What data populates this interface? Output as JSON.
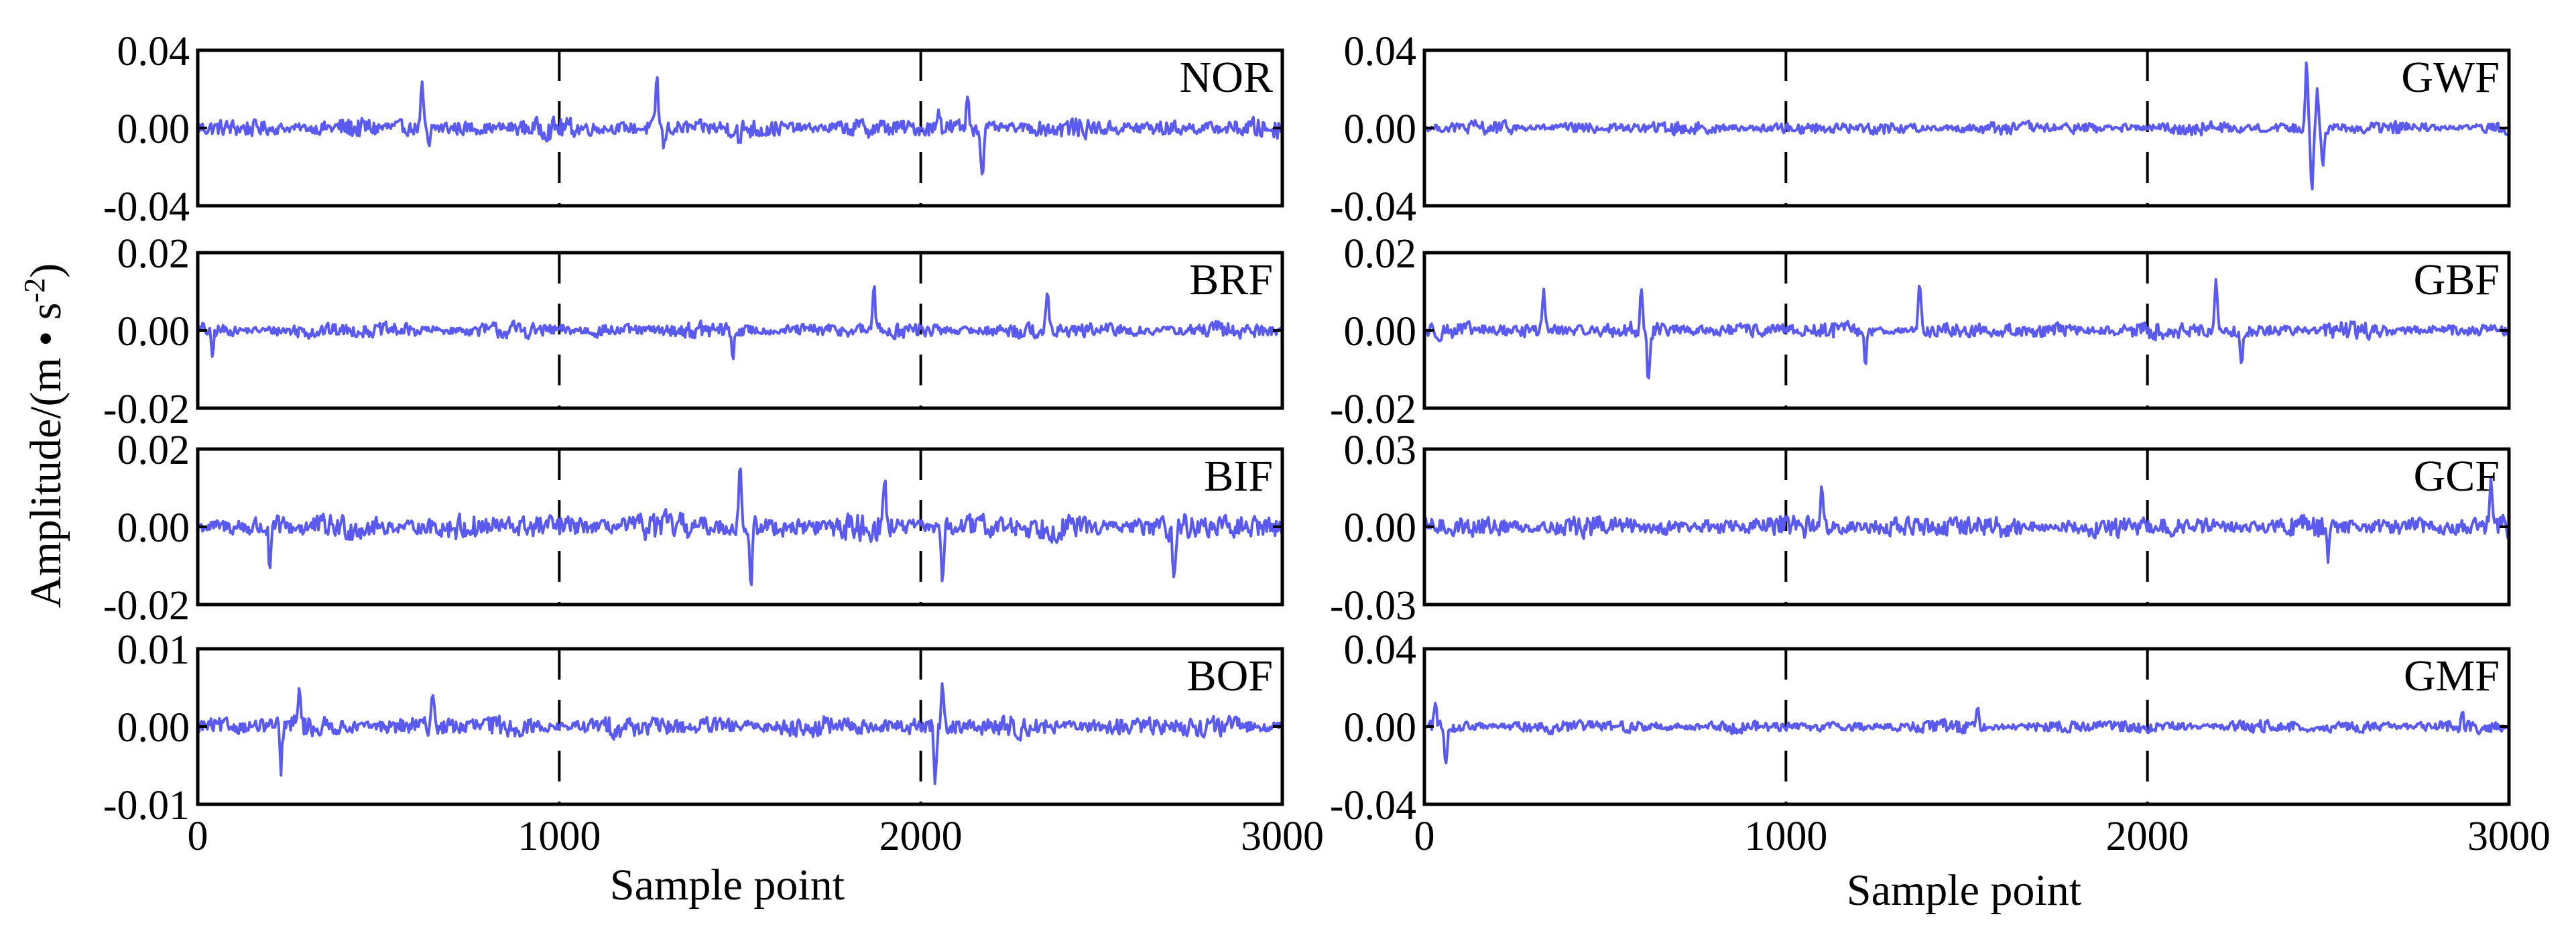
{
  "figure": {
    "ylabel_main": "Amplitude/(m • s",
    "ylabel_exp": "-2",
    "ylabel_close": ")",
    "xlabel_left": "Sample point",
    "xlabel_right": "Sample point",
    "series_color": "#5a5af0",
    "grid": "dashed vertical lines at x = 1000 and 2000"
  },
  "chart_data": [
    {
      "type": "line",
      "panel": "NOR",
      "title": "",
      "xlabel": "",
      "ylabel": "",
      "xlim": [
        0,
        3000
      ],
      "ylim": [
        -0.04,
        0.04
      ],
      "x_ticks": [],
      "x_tick_labels": [],
      "y_ticks": [
        -0.04,
        0.0,
        0.04
      ],
      "y_tick_labels": [
        "-0.04",
        "0.00",
        "0.04"
      ],
      "noise_amplitude": 0.006,
      "spikes": [
        {
          "x": 620,
          "y": 0.021
        },
        {
          "x": 640,
          "y": -0.012
        },
        {
          "x": 1270,
          "y": 0.026
        },
        {
          "x": 1290,
          "y": -0.01
        },
        {
          "x": 2130,
          "y": 0.018
        },
        {
          "x": 2170,
          "y": -0.026
        },
        {
          "x": 2050,
          "y": 0.013
        },
        {
          "x": 1500,
          "y": -0.009
        }
      ]
    },
    {
      "type": "line",
      "panel": "BRF",
      "title": "",
      "xlabel": "",
      "ylabel": "",
      "xlim": [
        0,
        3000
      ],
      "ylim": [
        -0.02,
        0.02
      ],
      "x_ticks": [],
      "x_tick_labels": [],
      "y_ticks": [
        -0.02,
        0.0,
        0.02
      ],
      "y_tick_labels": [
        "-0.02",
        "0.00",
        "0.02"
      ],
      "noise_amplitude": 0.0025,
      "spikes": [
        {
          "x": 1870,
          "y": 0.012
        },
        {
          "x": 1480,
          "y": -0.007
        },
        {
          "x": 2350,
          "y": 0.009
        },
        {
          "x": 40,
          "y": -0.007
        }
      ]
    },
    {
      "type": "line",
      "panel": "BIF",
      "title": "",
      "xlabel": "",
      "ylabel": "",
      "xlim": [
        0,
        3000
      ],
      "ylim": [
        -0.02,
        0.02
      ],
      "x_ticks": [],
      "x_tick_labels": [],
      "y_ticks": [
        -0.02,
        0.0,
        0.02
      ],
      "y_tick_labels": [
        "-0.02",
        "0.00",
        "0.02"
      ],
      "noise_amplitude": 0.004,
      "spikes": [
        {
          "x": 1500,
          "y": 0.016
        },
        {
          "x": 1530,
          "y": -0.017
        },
        {
          "x": 200,
          "y": -0.012
        },
        {
          "x": 2060,
          "y": -0.013
        },
        {
          "x": 1900,
          "y": 0.013
        },
        {
          "x": 2700,
          "y": -0.012
        }
      ]
    },
    {
      "type": "line",
      "panel": "BOF",
      "title": "",
      "xlabel": "Sample point",
      "ylabel": "",
      "xlim": [
        0,
        3000
      ],
      "ylim": [
        -0.01,
        0.01
      ],
      "x_ticks": [
        0,
        1000,
        2000,
        3000
      ],
      "x_tick_labels": [
        "0",
        "1000",
        "2000",
        "3000"
      ],
      "y_ticks": [
        -0.01,
        0.0,
        0.01
      ],
      "y_tick_labels": [
        "-0.01",
        "0.00",
        "0.01"
      ],
      "noise_amplitude": 0.0016,
      "spikes": [
        {
          "x": 2040,
          "y": -0.007
        },
        {
          "x": 2060,
          "y": 0.0055
        },
        {
          "x": 230,
          "y": -0.0055
        },
        {
          "x": 280,
          "y": 0.0055
        },
        {
          "x": 650,
          "y": 0.005
        }
      ]
    },
    {
      "type": "line",
      "panel": "GWF",
      "title": "",
      "xlabel": "",
      "ylabel": "",
      "xlim": [
        0,
        3000
      ],
      "ylim": [
        -0.04,
        0.04
      ],
      "x_ticks": [],
      "x_tick_labels": [],
      "y_ticks": [
        -0.04,
        0.0,
        0.04
      ],
      "y_tick_labels": [
        "-0.04",
        "0.00",
        "0.04"
      ],
      "noise_amplitude": 0.004,
      "spikes": [
        {
          "x": 2440,
          "y": 0.033
        },
        {
          "x": 2455,
          "y": -0.034
        },
        {
          "x": 2470,
          "y": 0.02
        },
        {
          "x": 2485,
          "y": -0.018
        }
      ]
    },
    {
      "type": "line",
      "panel": "GBF",
      "title": "",
      "xlabel": "",
      "ylabel": "",
      "xlim": [
        0,
        3000
      ],
      "ylim": [
        -0.02,
        0.02
      ],
      "x_ticks": [],
      "x_tick_labels": [],
      "y_ticks": [
        -0.02,
        0.0,
        0.02
      ],
      "y_tick_labels": [
        "-0.02",
        "0.00",
        "0.02"
      ],
      "noise_amplitude": 0.0025,
      "spikes": [
        {
          "x": 600,
          "y": 0.011
        },
        {
          "x": 620,
          "y": -0.013
        },
        {
          "x": 330,
          "y": 0.011
        },
        {
          "x": 1370,
          "y": 0.012
        },
        {
          "x": 1220,
          "y": -0.008
        },
        {
          "x": 2190,
          "y": 0.013
        },
        {
          "x": 2260,
          "y": -0.008
        }
      ]
    },
    {
      "type": "line",
      "panel": "GCF",
      "title": "",
      "xlabel": "",
      "ylabel": "",
      "xlim": [
        0,
        3000
      ],
      "ylim": [
        -0.03,
        0.03
      ],
      "x_ticks": [],
      "x_tick_labels": [],
      "y_ticks": [
        -0.03,
        0.0,
        0.03
      ],
      "y_tick_labels": [
        "-0.03",
        "0.00",
        "0.03"
      ],
      "noise_amplitude": 0.005,
      "spikes": [
        {
          "x": 2950,
          "y": 0.015
        },
        {
          "x": 1100,
          "y": 0.017
        },
        {
          "x": 2500,
          "y": -0.014
        }
      ]
    },
    {
      "type": "line",
      "panel": "GMF",
      "title": "",
      "xlabel": "Sample point",
      "ylabel": "",
      "xlim": [
        0,
        3000
      ],
      "ylim": [
        -0.04,
        0.04
      ],
      "x_ticks": [
        0,
        1000,
        2000,
        3000
      ],
      "x_tick_labels": [
        "0",
        "1000",
        "2000",
        "3000"
      ],
      "y_ticks": [
        -0.04,
        0.0,
        0.04
      ],
      "y_tick_labels": [
        "-0.04",
        "0.00",
        "0.04"
      ],
      "noise_amplitude": 0.004,
      "spikes": [
        {
          "x": 60,
          "y": -0.02
        },
        {
          "x": 30,
          "y": 0.013
        },
        {
          "x": 1530,
          "y": 0.012
        },
        {
          "x": 2870,
          "y": 0.009
        }
      ]
    }
  ]
}
